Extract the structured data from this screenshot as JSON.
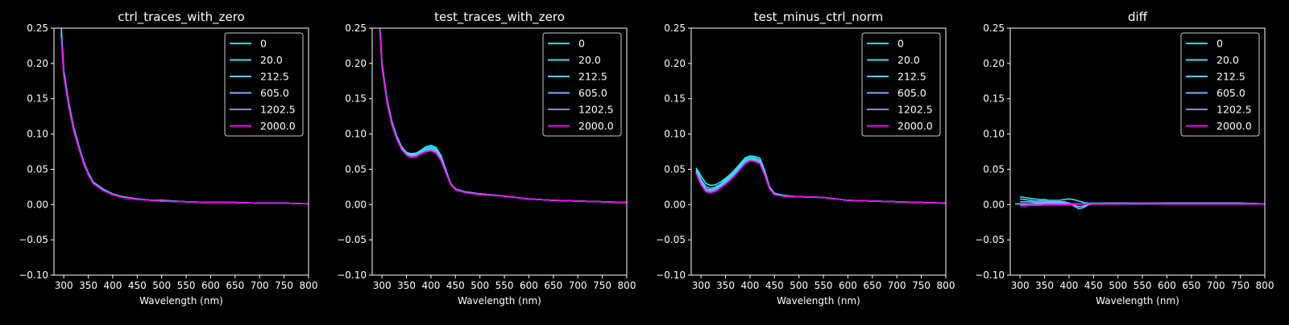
{
  "figure": {
    "background": "#000000",
    "foreground": "#ffffff"
  },
  "legend_labels": [
    "0",
    "20.0",
    "212.5",
    "605.0",
    "1202.5",
    "2000.0"
  ],
  "series_colors": [
    "#00ffff",
    "#2ee0f5",
    "#55ccff",
    "#7db0ff",
    "#a87bff",
    "#ff00ff"
  ],
  "chart_data": [
    {
      "type": "line",
      "title": "ctrl_traces_with_zero",
      "xlabel": "Wavelength (nm)",
      "ylabel": "",
      "xlim": [
        280,
        800
      ],
      "ylim": [
        -0.1,
        0.25
      ],
      "xticks": [
        "300",
        "350",
        "400",
        "450",
        "500",
        "550",
        "600",
        "650",
        "700",
        "750",
        "800"
      ],
      "yticks": [
        "−0.10",
        "−0.05",
        "0.00",
        "0.05",
        "0.10",
        "0.15",
        "0.20",
        "0.25"
      ],
      "legend": "top-right",
      "grid": false,
      "x": [
        295,
        300,
        310,
        320,
        330,
        340,
        350,
        360,
        380,
        400,
        420,
        450,
        480,
        500,
        550,
        600,
        650,
        700,
        750,
        800
      ],
      "series": [
        {
          "name": "0",
          "values": [
            0.25,
            0.19,
            0.145,
            0.11,
            0.085,
            0.062,
            0.045,
            0.032,
            0.022,
            0.015,
            0.011,
            0.008,
            0.006,
            0.006,
            0.004,
            0.003,
            0.003,
            0.002,
            0.002,
            0.001
          ]
        },
        {
          "name": "20.0",
          "values": [
            0.245,
            0.188,
            0.144,
            0.109,
            0.084,
            0.061,
            0.044,
            0.031,
            0.021,
            0.015,
            0.011,
            0.008,
            0.006,
            0.006,
            0.004,
            0.003,
            0.003,
            0.002,
            0.002,
            0.001
          ]
        },
        {
          "name": "212.5",
          "values": [
            0.242,
            0.186,
            0.142,
            0.108,
            0.083,
            0.06,
            0.044,
            0.031,
            0.021,
            0.014,
            0.011,
            0.008,
            0.006,
            0.005,
            0.004,
            0.003,
            0.003,
            0.002,
            0.002,
            0.001
          ]
        },
        {
          "name": "605.0",
          "values": [
            0.24,
            0.185,
            0.141,
            0.107,
            0.082,
            0.06,
            0.043,
            0.031,
            0.021,
            0.014,
            0.01,
            0.008,
            0.006,
            0.005,
            0.004,
            0.003,
            0.003,
            0.002,
            0.002,
            0.001
          ]
        },
        {
          "name": "1202.5",
          "values": [
            0.238,
            0.184,
            0.14,
            0.106,
            0.082,
            0.059,
            0.043,
            0.03,
            0.02,
            0.014,
            0.01,
            0.008,
            0.006,
            0.005,
            0.004,
            0.003,
            0.003,
            0.002,
            0.002,
            0.001
          ]
        },
        {
          "name": "2000.0",
          "values": [
            0.235,
            0.182,
            0.139,
            0.105,
            0.081,
            0.059,
            0.042,
            0.03,
            0.02,
            0.014,
            0.01,
            0.007,
            0.006,
            0.005,
            0.004,
            0.003,
            0.003,
            0.002,
            0.002,
            0.001
          ]
        }
      ]
    },
    {
      "type": "line",
      "title": "test_traces_with_zero",
      "xlabel": "Wavelength (nm)",
      "ylabel": "",
      "xlim": [
        280,
        800
      ],
      "ylim": [
        -0.1,
        0.25
      ],
      "xticks": [
        "300",
        "350",
        "400",
        "450",
        "500",
        "550",
        "600",
        "650",
        "700",
        "750",
        "800"
      ],
      "yticks": [
        "−0.10",
        "−0.05",
        "0.00",
        "0.05",
        "0.10",
        "0.15",
        "0.20",
        "0.25"
      ],
      "legend": "top-right",
      "grid": false,
      "x": [
        295,
        300,
        310,
        320,
        330,
        340,
        350,
        360,
        370,
        380,
        390,
        400,
        410,
        420,
        430,
        440,
        450,
        470,
        500,
        550,
        600,
        650,
        700,
        750,
        800
      ],
      "series": [
        {
          "name": "0",
          "values": [
            0.26,
            0.2,
            0.15,
            0.118,
            0.097,
            0.082,
            0.074,
            0.072,
            0.073,
            0.077,
            0.082,
            0.084,
            0.081,
            0.07,
            0.05,
            0.03,
            0.022,
            0.018,
            0.015,
            0.012,
            0.008,
            0.006,
            0.005,
            0.004,
            0.003
          ]
        },
        {
          "name": "20.0",
          "values": [
            0.258,
            0.198,
            0.149,
            0.117,
            0.096,
            0.081,
            0.073,
            0.071,
            0.072,
            0.076,
            0.08,
            0.082,
            0.079,
            0.068,
            0.049,
            0.03,
            0.022,
            0.018,
            0.015,
            0.012,
            0.008,
            0.006,
            0.005,
            0.004,
            0.003
          ]
        },
        {
          "name": "212.5",
          "values": [
            0.256,
            0.197,
            0.148,
            0.116,
            0.095,
            0.08,
            0.072,
            0.07,
            0.071,
            0.075,
            0.078,
            0.08,
            0.077,
            0.066,
            0.048,
            0.03,
            0.022,
            0.017,
            0.015,
            0.012,
            0.008,
            0.006,
            0.005,
            0.004,
            0.003
          ]
        },
        {
          "name": "605.0",
          "values": [
            0.255,
            0.196,
            0.147,
            0.115,
            0.094,
            0.079,
            0.071,
            0.069,
            0.07,
            0.074,
            0.077,
            0.078,
            0.075,
            0.065,
            0.047,
            0.029,
            0.021,
            0.017,
            0.015,
            0.012,
            0.008,
            0.006,
            0.005,
            0.004,
            0.003
          ]
        },
        {
          "name": "1202.5",
          "values": [
            0.254,
            0.195,
            0.146,
            0.114,
            0.094,
            0.079,
            0.07,
            0.068,
            0.069,
            0.073,
            0.076,
            0.077,
            0.074,
            0.064,
            0.046,
            0.029,
            0.021,
            0.017,
            0.015,
            0.012,
            0.008,
            0.006,
            0.005,
            0.004,
            0.003
          ]
        },
        {
          "name": "2000.0",
          "values": [
            0.253,
            0.194,
            0.145,
            0.113,
            0.093,
            0.078,
            0.07,
            0.067,
            0.068,
            0.072,
            0.075,
            0.076,
            0.073,
            0.063,
            0.046,
            0.029,
            0.021,
            0.017,
            0.014,
            0.012,
            0.008,
            0.006,
            0.005,
            0.004,
            0.003
          ]
        }
      ]
    },
    {
      "type": "line",
      "title": "test_minus_ctrl_norm",
      "xlabel": "Wavelength (nm)",
      "ylabel": "",
      "xlim": [
        280,
        800
      ],
      "ylim": [
        -0.1,
        0.25
      ],
      "xticks": [
        "300",
        "350",
        "400",
        "450",
        "500",
        "550",
        "600",
        "650",
        "700",
        "750",
        "800"
      ],
      "yticks": [
        "−0.10",
        "−0.05",
        "0.00",
        "0.05",
        "0.10",
        "0.15",
        "0.20",
        "0.25"
      ],
      "legend": "top-right",
      "grid": false,
      "x": [
        290,
        300,
        310,
        320,
        330,
        340,
        350,
        360,
        370,
        380,
        390,
        400,
        410,
        420,
        430,
        440,
        450,
        470,
        500,
        550,
        600,
        650,
        700,
        750,
        800
      ],
      "series": [
        {
          "name": "0",
          "values": [
            0.052,
            0.04,
            0.03,
            0.027,
            0.028,
            0.032,
            0.037,
            0.043,
            0.05,
            0.058,
            0.066,
            0.069,
            0.068,
            0.066,
            0.048,
            0.025,
            0.016,
            0.013,
            0.011,
            0.01,
            0.006,
            0.005,
            0.004,
            0.003,
            0.002
          ]
        },
        {
          "name": "20.0",
          "values": [
            0.05,
            0.035,
            0.025,
            0.023,
            0.025,
            0.029,
            0.035,
            0.041,
            0.048,
            0.056,
            0.064,
            0.067,
            0.066,
            0.063,
            0.046,
            0.024,
            0.015,
            0.012,
            0.011,
            0.01,
            0.006,
            0.005,
            0.004,
            0.003,
            0.002
          ]
        },
        {
          "name": "212.5",
          "values": [
            0.048,
            0.032,
            0.022,
            0.021,
            0.023,
            0.027,
            0.033,
            0.039,
            0.046,
            0.054,
            0.062,
            0.065,
            0.064,
            0.061,
            0.045,
            0.024,
            0.015,
            0.012,
            0.011,
            0.01,
            0.006,
            0.005,
            0.004,
            0.003,
            0.002
          ]
        },
        {
          "name": "605.0",
          "values": [
            0.046,
            0.03,
            0.02,
            0.019,
            0.021,
            0.026,
            0.031,
            0.037,
            0.044,
            0.052,
            0.06,
            0.064,
            0.063,
            0.06,
            0.044,
            0.023,
            0.014,
            0.012,
            0.011,
            0.01,
            0.006,
            0.005,
            0.004,
            0.003,
            0.002
          ]
        },
        {
          "name": "1202.5",
          "values": [
            0.045,
            0.029,
            0.019,
            0.018,
            0.02,
            0.025,
            0.03,
            0.036,
            0.043,
            0.051,
            0.059,
            0.063,
            0.062,
            0.059,
            0.043,
            0.023,
            0.014,
            0.012,
            0.011,
            0.01,
            0.006,
            0.005,
            0.004,
            0.003,
            0.002
          ]
        },
        {
          "name": "2000.0",
          "values": [
            0.044,
            0.028,
            0.018,
            0.017,
            0.019,
            0.024,
            0.029,
            0.035,
            0.042,
            0.05,
            0.058,
            0.062,
            0.061,
            0.058,
            0.042,
            0.022,
            0.014,
            0.012,
            0.011,
            0.01,
            0.006,
            0.005,
            0.004,
            0.003,
            0.002
          ]
        }
      ]
    },
    {
      "type": "line",
      "title": "diff",
      "xlabel": "Wavelength (nm)",
      "ylabel": "",
      "xlim": [
        280,
        800
      ],
      "ylim": [
        -0.1,
        0.25
      ],
      "xticks": [
        "300",
        "350",
        "400",
        "450",
        "500",
        "550",
        "600",
        "650",
        "700",
        "750",
        "800"
      ],
      "yticks": [
        "−0.10",
        "−0.05",
        "0.00",
        "0.05",
        "0.10",
        "0.15",
        "0.20",
        "0.25"
      ],
      "legend": "top-right",
      "grid": false,
      "x": [
        290,
        300,
        310,
        320,
        330,
        340,
        350,
        360,
        370,
        380,
        390,
        400,
        410,
        420,
        430,
        440,
        450,
        470,
        500,
        550,
        600,
        650,
        700,
        750,
        800
      ],
      "series": [
        {
          "name": "0",
          "values": [
            0.001,
            0.001,
            0.001,
            0.001,
            0.001,
            0.001,
            0.001,
            0.001,
            0.001,
            0.001,
            0.001,
            0.001,
            0.001,
            0.001,
            0.001,
            0.001,
            0.001,
            0.001,
            0.001,
            0.001,
            0.001,
            0.001,
            0.001,
            0.001,
            0.001
          ]
        },
        {
          "name": "20.0",
          "values": [
            null,
            0.011,
            0.01,
            0.009,
            0.008,
            0.007,
            0.007,
            0.006,
            0.006,
            0.006,
            0.007,
            0.008,
            0.007,
            0.005,
            0.003,
            0.002,
            0.002,
            0.002,
            0.002,
            0.002,
            0.002,
            0.002,
            0.002,
            0.002,
            0.001
          ]
        },
        {
          "name": "212.5",
          "values": [
            null,
            0.008,
            0.007,
            0.006,
            0.005,
            0.005,
            0.005,
            0.004,
            0.004,
            0.004,
            0.004,
            0.002,
            -0.002,
            -0.006,
            -0.004,
            0.0,
            0.001,
            0.002,
            0.002,
            0.002,
            0.002,
            0.002,
            0.002,
            0.002,
            0.001
          ]
        },
        {
          "name": "605.0",
          "values": [
            null,
            0.004,
            0.004,
            0.004,
            0.003,
            0.003,
            0.003,
            0.003,
            0.003,
            0.003,
            0.003,
            0.002,
            -0.001,
            -0.003,
            -0.002,
            0.0,
            0.001,
            0.001,
            0.002,
            0.002,
            0.002,
            0.002,
            0.002,
            0.002,
            0.001
          ]
        },
        {
          "name": "1202.5",
          "values": [
            null,
            0.0,
            0.0,
            0.001,
            0.001,
            0.001,
            0.001,
            0.001,
            0.001,
            0.001,
            0.001,
            0.001,
            0.001,
            0.001,
            0.001,
            0.001,
            0.001,
            0.001,
            0.001,
            0.001,
            0.001,
            0.001,
            0.001,
            0.001,
            0.001
          ]
        },
        {
          "name": "2000.0",
          "values": [
            null,
            -0.002,
            -0.002,
            -0.001,
            -0.001,
            -0.001,
            0.0,
            0.0,
            0.0,
            0.0,
            0.0,
            0.0,
            0.0,
            0.001,
            0.001,
            0.001,
            0.001,
            0.001,
            0.001,
            0.002,
            0.001,
            0.001,
            0.001,
            0.001,
            0.001
          ]
        }
      ]
    }
  ]
}
